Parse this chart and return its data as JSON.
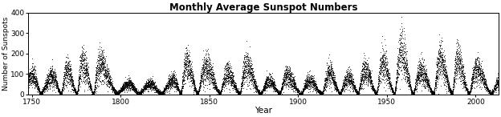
{
  "title": "Monthly Average Sunspot Numbers",
  "xlabel": "Year",
  "ylabel": "Number of Sunspots",
  "xlim": [
    1748,
    2013
  ],
  "ylim": [
    0,
    400
  ],
  "yticks": [
    0,
    100,
    200,
    300,
    400
  ],
  "xticks": [
    1750,
    1800,
    1850,
    1900,
    1950,
    2000
  ],
  "dot_color": "black",
  "figsize": [
    6.24,
    1.46
  ],
  "dpi": 100,
  "background": "white",
  "solar_cycles": [
    {
      "trough": 1745.0,
      "peak": 1750.3,
      "peak_val": 92,
      "next_trough": 1755.2
    },
    {
      "trough": 1755.2,
      "peak": 1761.5,
      "peak_val": 86,
      "next_trough": 1766.5
    },
    {
      "trough": 1766.5,
      "peak": 1769.7,
      "peak_val": 115,
      "next_trough": 1775.5
    },
    {
      "trough": 1775.5,
      "peak": 1778.4,
      "peak_val": 158,
      "next_trough": 1784.7
    },
    {
      "trough": 1784.7,
      "peak": 1788.1,
      "peak_val": 141,
      "next_trough": 1798.3
    },
    {
      "trough": 1798.3,
      "peak": 1804.5,
      "peak_val": 49,
      "next_trough": 1810.6
    },
    {
      "trough": 1810.6,
      "peak": 1816.4,
      "peak_val": 48,
      "next_trough": 1823.3
    },
    {
      "trough": 1823.3,
      "peak": 1829.9,
      "peak_val": 71,
      "next_trough": 1833.9
    },
    {
      "trough": 1833.9,
      "peak": 1837.2,
      "peak_val": 146,
      "next_trough": 1843.5
    },
    {
      "trough": 1843.5,
      "peak": 1848.1,
      "peak_val": 131,
      "next_trough": 1856.0
    },
    {
      "trough": 1856.0,
      "peak": 1860.1,
      "peak_val": 98,
      "next_trough": 1867.2
    },
    {
      "trough": 1867.2,
      "peak": 1870.6,
      "peak_val": 140,
      "next_trough": 1878.9
    },
    {
      "trough": 1878.9,
      "peak": 1883.9,
      "peak_val": 63,
      "next_trough": 1889.6
    },
    {
      "trough": 1889.6,
      "peak": 1893.6,
      "peak_val": 88,
      "next_trough": 1901.7
    },
    {
      "trough": 1901.7,
      "peak": 1906.1,
      "peak_val": 64,
      "next_trough": 1913.6
    },
    {
      "trough": 1913.6,
      "peak": 1917.6,
      "peak_val": 105,
      "next_trough": 1923.6
    },
    {
      "trough": 1923.6,
      "peak": 1928.4,
      "peak_val": 78,
      "next_trough": 1933.8
    },
    {
      "trough": 1933.8,
      "peak": 1937.4,
      "peak_val": 119,
      "next_trough": 1944.2
    },
    {
      "trough": 1944.2,
      "peak": 1947.5,
      "peak_val": 152,
      "next_trough": 1954.3
    },
    {
      "trough": 1954.3,
      "peak": 1957.9,
      "peak_val": 201,
      "next_trough": 1964.9
    },
    {
      "trough": 1964.9,
      "peak": 1968.9,
      "peak_val": 111,
      "next_trough": 1976.5
    },
    {
      "trough": 1976.5,
      "peak": 1979.9,
      "peak_val": 164,
      "next_trough": 1986.8
    },
    {
      "trough": 1986.8,
      "peak": 1989.6,
      "peak_val": 158,
      "next_trough": 1996.4
    },
    {
      "trough": 1996.4,
      "peak": 2000.3,
      "peak_val": 120,
      "next_trough": 2008.9
    },
    {
      "trough": 2008.9,
      "peak": 2014.0,
      "peak_val": 66,
      "next_trough": 2019.0
    }
  ]
}
